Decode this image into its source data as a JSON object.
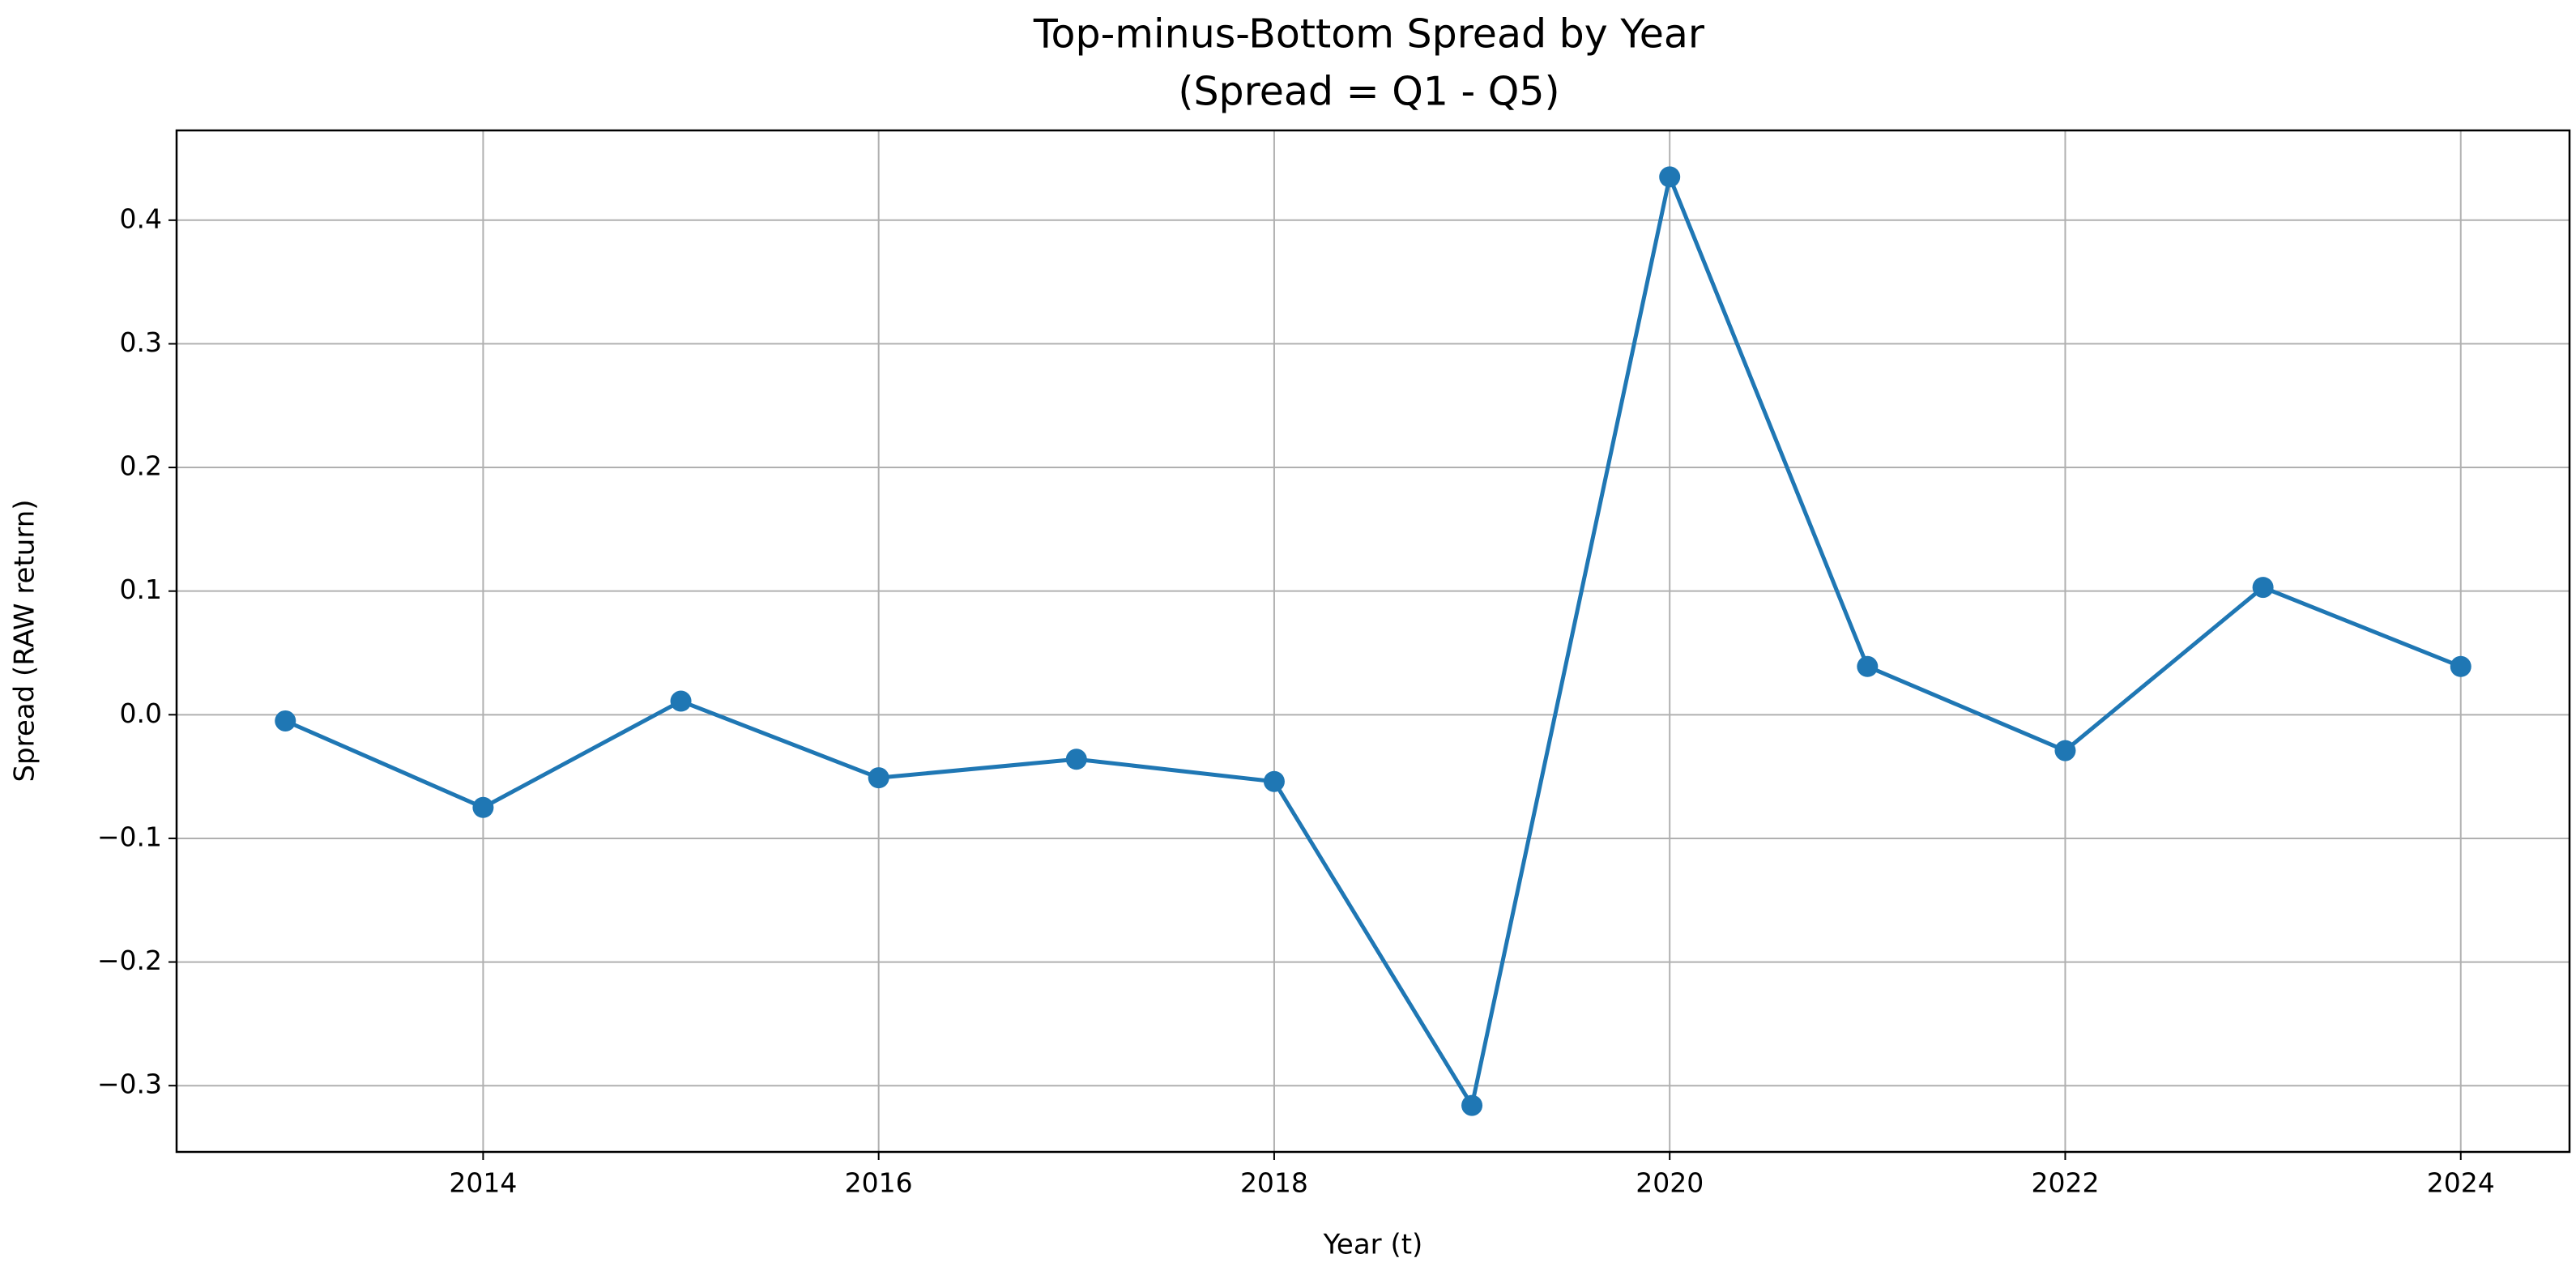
{
  "chart_data": {
    "type": "line",
    "title": "Top-minus-Bottom Spread by Year",
    "subtitle": "(Spread = Q1 - Q5)",
    "x_label": "Year (t)",
    "y_label": "Spread (RAW return)",
    "x": [
      2013,
      2014,
      2015,
      2016,
      2017,
      2018,
      2019,
      2020,
      2021,
      2022,
      2023,
      2024
    ],
    "series": [
      {
        "name": "Spread",
        "color": "#1f77b4",
        "values": [
          -0.005,
          -0.075,
          0.011,
          -0.051,
          -0.036,
          -0.054,
          -0.316,
          0.435,
          0.039,
          -0.029,
          0.103,
          0.039
        ]
      }
    ],
    "xlim": [
      2012.45,
      2024.55
    ],
    "xticks": [
      2014,
      2016,
      2018,
      2020,
      2022,
      2024
    ],
    "ylim": [
      -0.3536,
      0.4726
    ],
    "yticks": [
      {
        "value": -0.3,
        "label": "−0.3"
      },
      {
        "value": -0.2,
        "label": "−0.2"
      },
      {
        "value": -0.1,
        "label": "−0.1"
      },
      {
        "value": 0,
        "label": "0.0"
      },
      0.1,
      0.2,
      0.3,
      0.4
    ],
    "grid": true,
    "marker": "circle"
  }
}
